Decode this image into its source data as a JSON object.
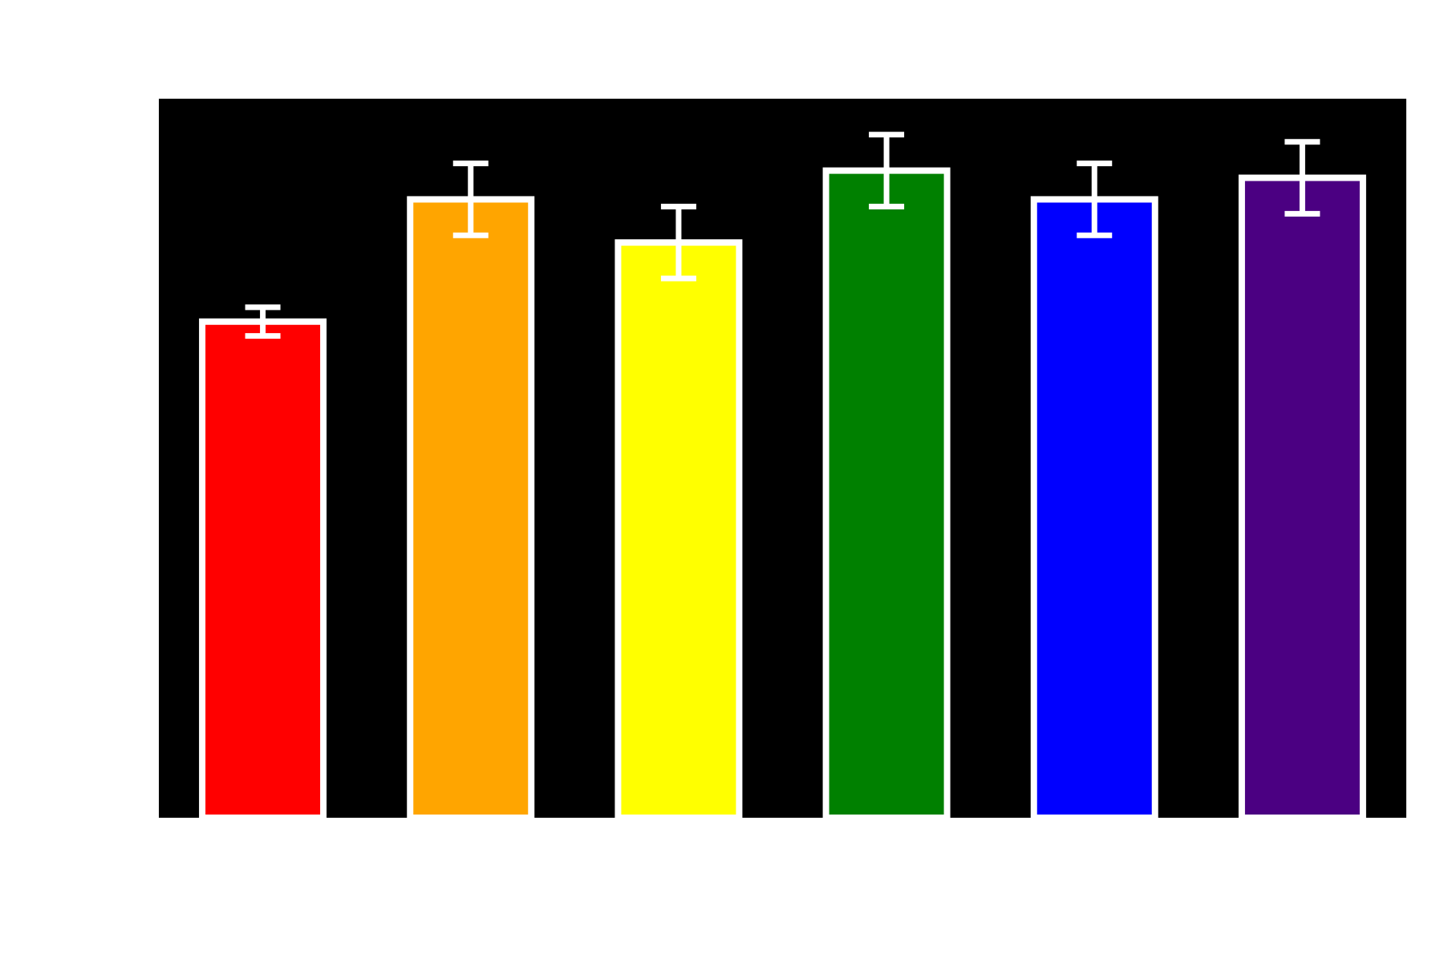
{
  "chart_data": {
    "type": "bar",
    "categories": [
      "",
      "",
      "",
      "",
      "",
      ""
    ],
    "values": [
      0.69,
      0.86,
      0.8,
      0.9,
      0.86,
      0.89
    ],
    "errors": [
      0.02,
      0.05,
      0.05,
      0.05,
      0.05,
      0.05
    ],
    "ylim": [
      0,
      1.0
    ],
    "grid": false,
    "background_color": "#000000",
    "bar_edge_color": "#ffffff",
    "errorbar_color": "#ffffff",
    "bar_colors": [
      "#ff0000",
      "#ffa500",
      "#ffff00",
      "#008000",
      "#0000ff",
      "#4b0082"
    ]
  }
}
